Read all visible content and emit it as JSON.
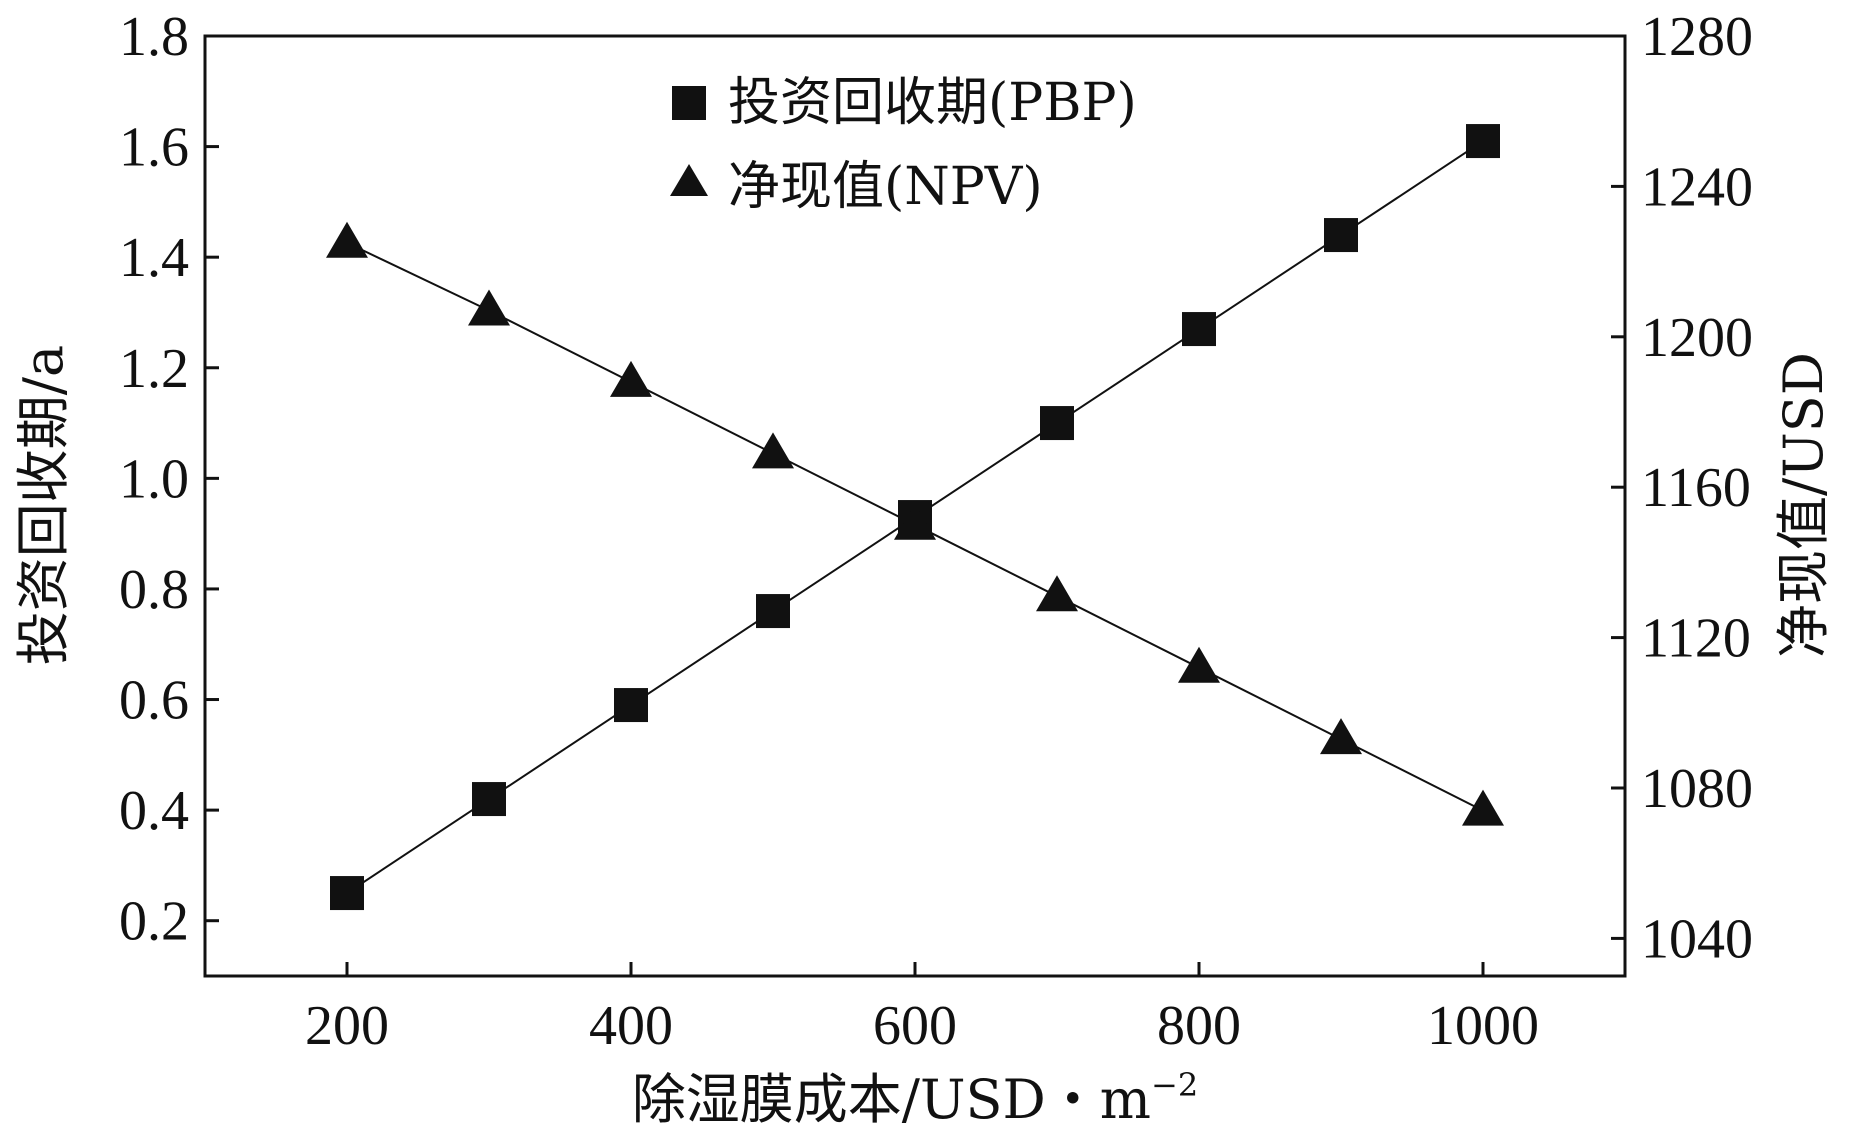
{
  "chart_data": {
    "type": "line",
    "title": "",
    "xlabel": "除湿膜成本/USD・m",
    "xlabel_superscript": "−2",
    "ylabel_left": "投资回收期/a",
    "ylabel_right": "净现值/USD",
    "x": [
      200,
      300,
      400,
      500,
      600,
      700,
      800,
      900,
      1000
    ],
    "xlim": [
      100,
      1100
    ],
    "xticks": [
      200,
      400,
      600,
      800,
      1000
    ],
    "xtick_labels": [
      "200",
      "400",
      "600",
      "800",
      "1000"
    ],
    "ylim_left": [
      0.1,
      1.8
    ],
    "yticks_left": [
      0.2,
      0.4,
      0.6,
      0.8,
      1.0,
      1.2,
      1.4,
      1.6,
      1.8
    ],
    "ytick_labels_left": [
      "0.2",
      "0.4",
      "0.6",
      "0.8",
      "1.0",
      "1.2",
      "1.4",
      "1.6",
      "1.8"
    ],
    "ylim_right": [
      1030,
      1280
    ],
    "yticks_right": [
      1040,
      1080,
      1120,
      1160,
      1200,
      1240,
      1280
    ],
    "ytick_labels_right": [
      "1040",
      "1080",
      "1120",
      "1160",
      "1200",
      "1240",
      "1280"
    ],
    "grid": false,
    "legend_position": "top-center",
    "series": [
      {
        "name": "投资回收期(PBP)",
        "axis": "left",
        "marker": "square",
        "color": "#111111",
        "values": [
          0.25,
          0.42,
          0.59,
          0.76,
          0.93,
          1.1,
          1.27,
          1.44,
          1.61
        ]
      },
      {
        "name": "净现值(NPV)",
        "axis": "right",
        "marker": "triangle",
        "color": "#111111",
        "values": [
          1225,
          1207,
          1188,
          1169,
          1150,
          1131,
          1112,
          1093,
          1074
        ]
      }
    ]
  }
}
